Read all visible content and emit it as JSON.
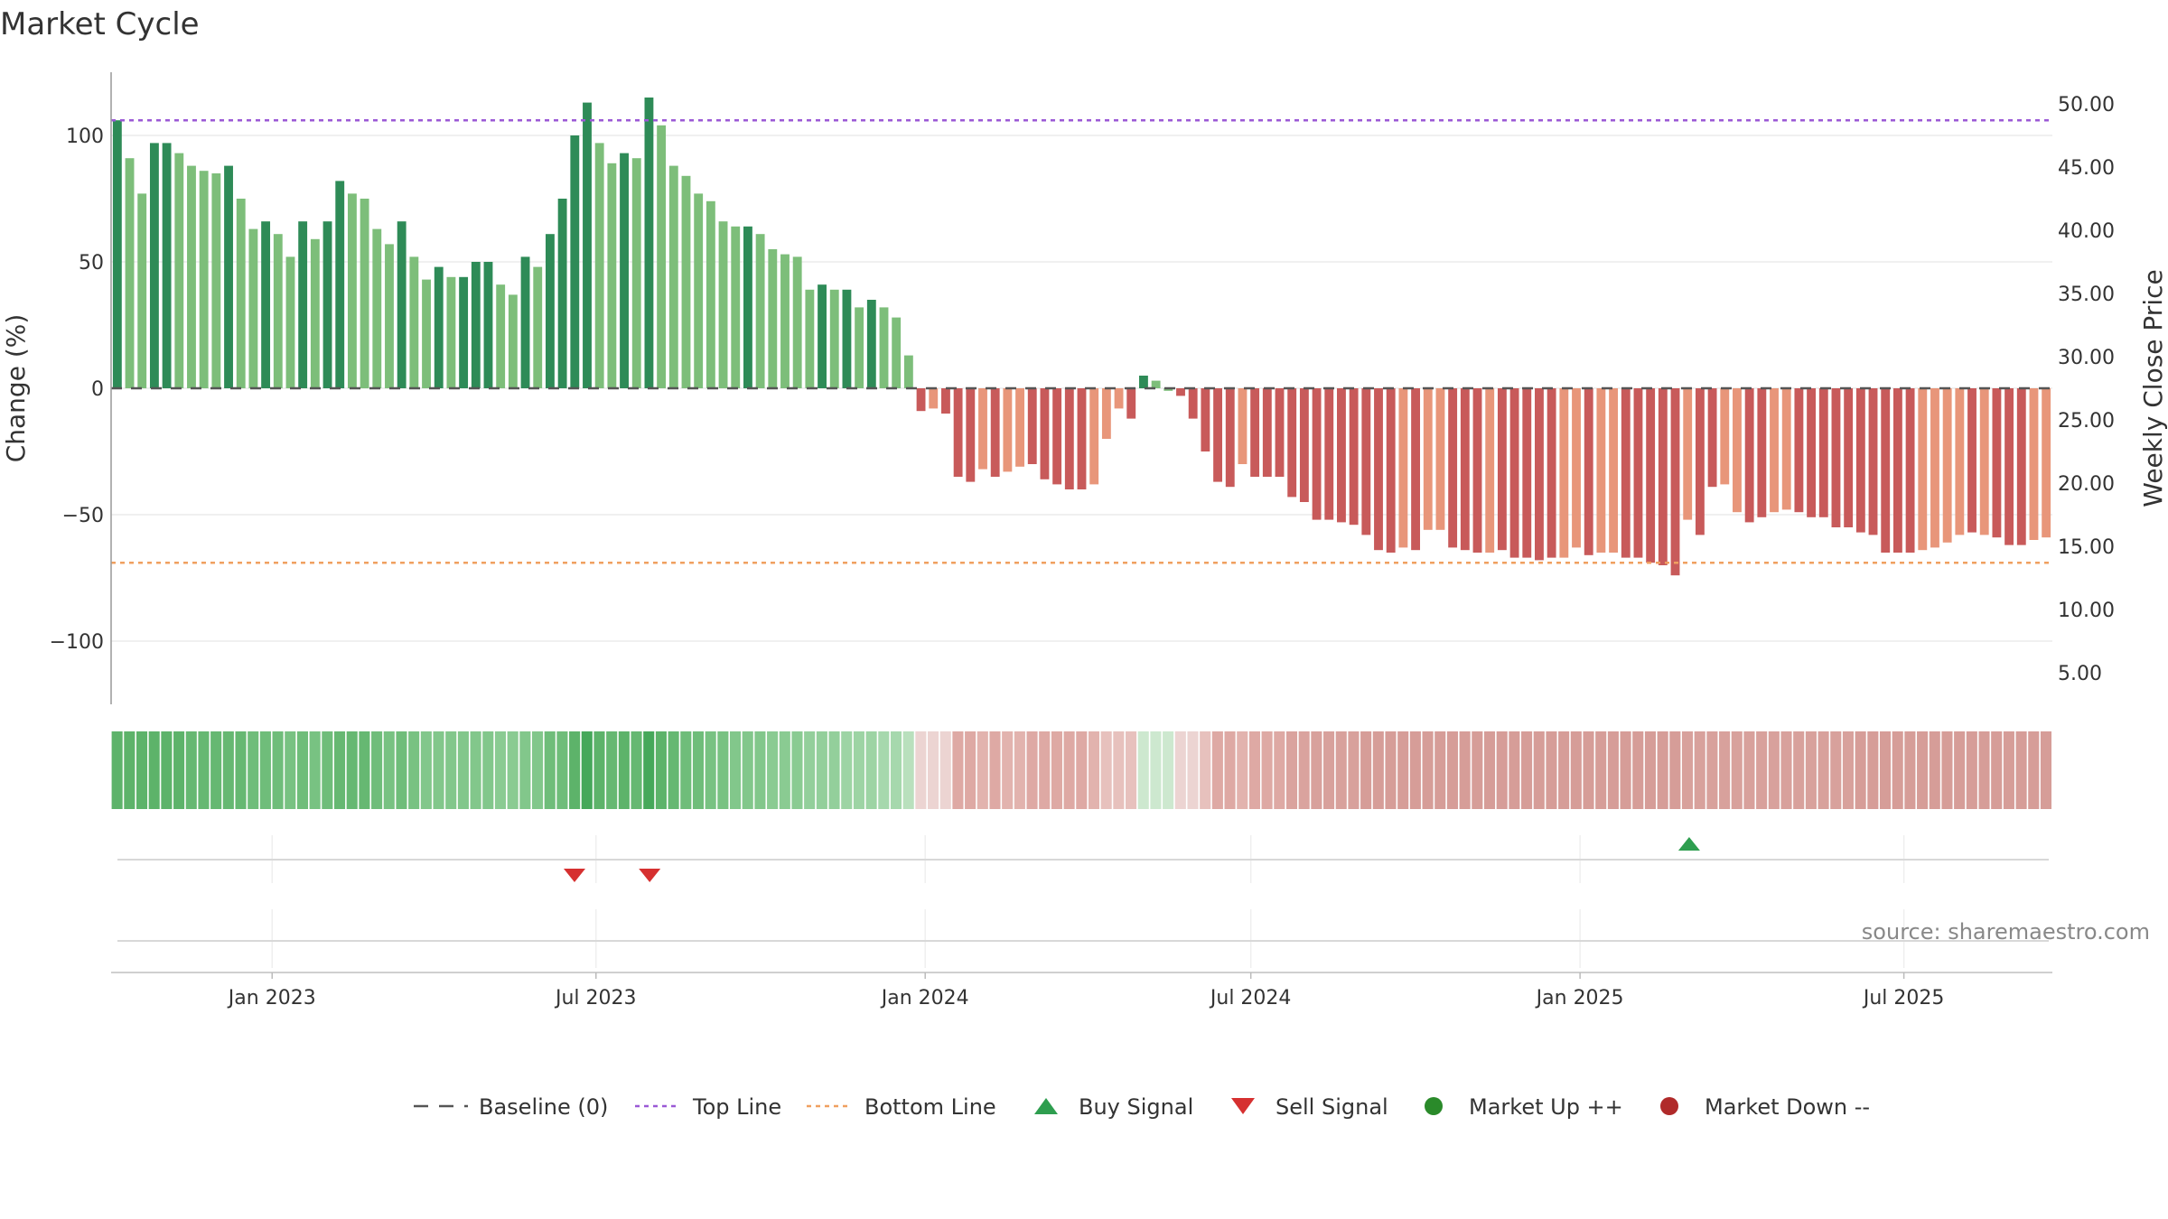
{
  "chart_data": {
    "type": "bar",
    "title": "Market Cycle",
    "ylabel_left": "Change (%)",
    "ylabel_right": "Weekly Close Price",
    "ylim_left": [
      -125,
      125
    ],
    "ylim_right": [
      2.5,
      52.5
    ],
    "left_ticks": [
      100,
      50,
      0,
      -50,
      -100
    ],
    "left_tick_labels": [
      "100",
      "50",
      "0",
      "−50",
      "−100"
    ],
    "right_ticks": [
      50,
      45,
      40,
      35,
      30,
      25,
      20,
      15,
      10,
      5
    ],
    "right_tick_labels": [
      "50.00",
      "45.00",
      "40.00",
      "35.00",
      "30.00",
      "25.00",
      "20.00",
      "15.00",
      "10.00",
      "5.00"
    ],
    "x_start": "2022-10-03",
    "x_end": "2025-09-22",
    "x_ticks": [
      "2023-01-01",
      "2023-07-01",
      "2024-01-01",
      "2024-07-01",
      "2025-01-01",
      "2025-07-01"
    ],
    "x_tick_labels": [
      "Jan 2023",
      "Jul 2023",
      "Jan 2024",
      "Jul 2024",
      "Jan 2025",
      "Jul 2025"
    ],
    "top_line": 106,
    "bottom_line": -69,
    "baseline": 0,
    "series": [
      {
        "values": [
          106,
          91,
          77,
          97,
          97,
          93,
          88,
          86,
          85,
          88,
          75,
          63,
          66,
          61,
          52,
          66,
          59,
          66,
          82,
          77,
          75,
          63,
          57,
          66,
          52,
          43,
          48,
          44,
          44,
          50,
          50,
          41,
          37,
          52,
          48,
          61,
          75,
          100,
          113,
          97,
          89,
          93,
          91,
          115,
          104,
          88,
          84,
          77,
          74,
          66,
          64,
          64,
          61,
          55,
          53,
          52,
          39,
          41,
          39,
          39,
          32,
          35,
          32,
          28,
          13,
          -9,
          -8,
          -10,
          -35,
          -37,
          -32,
          -35,
          -33,
          -31,
          -30,
          -36,
          -38,
          -40,
          -40,
          -38,
          -20,
          -8,
          -12,
          5,
          3,
          -1,
          -3,
          -12,
          -25,
          -37,
          -39,
          -30,
          -35,
          -35,
          -35,
          -43,
          -45,
          -52,
          -52,
          -53,
          -54,
          -58,
          -64,
          -65,
          -63,
          -64,
          -56,
          -56,
          -63,
          -64,
          -65,
          -65,
          -64,
          -67,
          -67,
          -68,
          -67,
          -67,
          -63,
          -66,
          -65,
          -65,
          -67,
          -67,
          -69,
          -70,
          -74,
          -52,
          -58,
          -39,
          -38,
          -49,
          -53,
          -51,
          -49,
          -48,
          -49,
          -51,
          -51,
          -55,
          -55,
          -57,
          -58,
          -65,
          -65,
          -65,
          -64,
          -63,
          -61,
          -58,
          -57,
          -58,
          -59,
          -62,
          -62,
          -60,
          -59
        ],
        "colors": [
          "#2e8b57",
          "#7dbe7a",
          "#7dbe7a",
          "#2e8b57",
          "#2e8b57",
          "#7dbe7a",
          "#7dbe7a",
          "#7dbe7a",
          "#7dbe7a",
          "#2e8b57",
          "#7dbe7a",
          "#7dbe7a",
          "#2e8b57",
          "#7dbe7a",
          "#7dbe7a",
          "#2e8b57",
          "#7dbe7a",
          "#2e8b57",
          "#2e8b57",
          "#7dbe7a",
          "#7dbe7a",
          "#7dbe7a",
          "#7dbe7a",
          "#2e8b57",
          "#7dbe7a",
          "#7dbe7a",
          "#2e8b57",
          "#7dbe7a",
          "#2e8b57",
          "#2e8b57",
          "#2e8b57",
          "#7dbe7a",
          "#7dbe7a",
          "#2e8b57",
          "#7dbe7a",
          "#2e8b57",
          "#2e8b57",
          "#2e8b57",
          "#2e8b57",
          "#7dbe7a",
          "#7dbe7a",
          "#2e8b57",
          "#7dbe7a",
          "#2e8b57",
          "#7dbe7a",
          "#7dbe7a",
          "#7dbe7a",
          "#7dbe7a",
          "#7dbe7a",
          "#7dbe7a",
          "#7dbe7a",
          "#2e8b57",
          "#7dbe7a",
          "#7dbe7a",
          "#7dbe7a",
          "#7dbe7a",
          "#7dbe7a",
          "#2e8b57",
          "#7dbe7a",
          "#2e8b57",
          "#7dbe7a",
          "#2e8b57",
          "#7dbe7a",
          "#7dbe7a",
          "#7dbe7a",
          "#c85a5a",
          "#e8967a",
          "#c85a5a",
          "#c85a5a",
          "#c85a5a",
          "#e8967a",
          "#c85a5a",
          "#e8967a",
          "#e8967a",
          "#c85a5a",
          "#c85a5a",
          "#c85a5a",
          "#c85a5a",
          "#c85a5a",
          "#e8967a",
          "#e8967a",
          "#e8967a",
          "#c85a5a",
          "#2e8b57",
          "#7dbe7a",
          "#7dbe7a",
          "#c85a5a",
          "#c85a5a",
          "#c85a5a",
          "#c85a5a",
          "#c85a5a",
          "#e8967a",
          "#c85a5a",
          "#c85a5a",
          "#c85a5a",
          "#c85a5a",
          "#c85a5a",
          "#c85a5a",
          "#c85a5a",
          "#c85a5a",
          "#c85a5a",
          "#c85a5a",
          "#c85a5a",
          "#c85a5a",
          "#e8967a",
          "#c85a5a",
          "#e8967a",
          "#e8967a",
          "#c85a5a",
          "#c85a5a",
          "#c85a5a",
          "#e8967a",
          "#c85a5a",
          "#c85a5a",
          "#c85a5a",
          "#c85a5a",
          "#c85a5a",
          "#e8967a",
          "#e8967a",
          "#c85a5a",
          "#e8967a",
          "#e8967a",
          "#c85a5a",
          "#c85a5a",
          "#c85a5a",
          "#c85a5a",
          "#c85a5a",
          "#e8967a",
          "#c85a5a",
          "#c85a5a",
          "#e8967a",
          "#e8967a",
          "#c85a5a",
          "#c85a5a",
          "#e8967a",
          "#e8967a",
          "#c85a5a",
          "#c85a5a",
          "#c85a5a",
          "#c85a5a",
          "#c85a5a",
          "#c85a5a",
          "#c85a5a",
          "#c85a5a",
          "#c85a5a",
          "#c85a5a",
          "#e8967a",
          "#e8967a",
          "#e8967a",
          "#e8967a",
          "#c85a5a",
          "#e8967a",
          "#c85a5a",
          "#c85a5a",
          "#c85a5a",
          "#e8967a",
          "#e8967a"
        ]
      }
    ],
    "strip_colors": [
      "#5db36a",
      "#5db36a",
      "#5db36a",
      "#5db36a",
      "#5db36a",
      "#5db36a",
      "#66b872",
      "#66b872",
      "#66b872",
      "#66b872",
      "#66b872",
      "#6fbd7a",
      "#6fbd7a",
      "#6fbd7a",
      "#78c282",
      "#6fbd7a",
      "#78c282",
      "#6fbd7a",
      "#66b872",
      "#66b872",
      "#66b872",
      "#6fbd7a",
      "#78c282",
      "#6fbd7a",
      "#78c282",
      "#82c78b",
      "#82c78b",
      "#82c78b",
      "#82c78b",
      "#82c78b",
      "#82c78b",
      "#8acb92",
      "#8acb92",
      "#82c78b",
      "#82c78b",
      "#6fbd7a",
      "#6fbd7a",
      "#5db36a",
      "#46a85a",
      "#5db36a",
      "#66b872",
      "#5db36a",
      "#66b872",
      "#46a85a",
      "#5db36a",
      "#66b872",
      "#6fbd7a",
      "#6fbd7a",
      "#78c282",
      "#78c282",
      "#82c78b",
      "#82c78b",
      "#82c78b",
      "#8acb92",
      "#8acb92",
      "#8acb92",
      "#93cf9b",
      "#93cf9b",
      "#93cf9b",
      "#9dd4a4",
      "#9dd4a4",
      "#9dd4a4",
      "#a6d8ad",
      "#a6d8ad",
      "#b9e0bd",
      "#ecd4d2",
      "#ecd4d2",
      "#ecd4d2",
      "#dea9a4",
      "#dea9a4",
      "#e2b3ae",
      "#dea9a4",
      "#e2b3ae",
      "#e2b3ae",
      "#dea9a4",
      "#dea9a4",
      "#dea9a4",
      "#dea9a4",
      "#dea9a4",
      "#e2b3ae",
      "#e7c1bd",
      "#e7c1bd",
      "#e7c1bd",
      "#cde8cf",
      "#cde8cf",
      "#cde8cf",
      "#ecd4d2",
      "#ecd4d2",
      "#e7c1bd",
      "#dea9a4",
      "#dea9a4",
      "#e2b3ae",
      "#dea9a4",
      "#dea9a4",
      "#dea9a4",
      "#daa39e",
      "#daa39e",
      "#d8a19c",
      "#d8a19c",
      "#d8a19c",
      "#d8a19c",
      "#d69d98",
      "#d69d98",
      "#d69d98",
      "#d69d98",
      "#d69d98",
      "#d69d98",
      "#d69d98",
      "#d69d98",
      "#d69d98",
      "#d69d98",
      "#d69d98",
      "#d69d98",
      "#d69d98",
      "#d69d98",
      "#d69d98",
      "#d69d98",
      "#d69d98",
      "#d69d98",
      "#d69d98",
      "#d69d98",
      "#d69d98",
      "#d69d98",
      "#d69d98",
      "#d69d98",
      "#d69d98",
      "#d69d98",
      "#d8a19c",
      "#d8a19c",
      "#d8a19c",
      "#d8a19c",
      "#d8a19c",
      "#d8a19c",
      "#d8a19c",
      "#d8a19c",
      "#d8a19c",
      "#d8a19c",
      "#d8a19c",
      "#d8a19c",
      "#d8a19c",
      "#d8a19c",
      "#d69d98",
      "#d69d98",
      "#d69d98",
      "#d69d98",
      "#d69d98",
      "#d69d98",
      "#d69d98",
      "#d69d98",
      "#d69d98",
      "#d69d98",
      "#d69d98",
      "#d69d98",
      "#d69d98",
      "#d69d98",
      "#d69d98",
      "#d69d98"
    ],
    "buy_signals": [
      "2025-03-03"
    ],
    "sell_signals": [
      "2023-06-19",
      "2023-07-31"
    ],
    "legend": [
      {
        "label": "Baseline (0)",
        "symbol": "dash",
        "color": "#555555"
      },
      {
        "label": "Top Line",
        "symbol": "dotted",
        "color": "#9b59d6"
      },
      {
        "label": "Bottom Line",
        "symbol": "dotted",
        "color": "#f0a060"
      },
      {
        "label": "Buy Signal",
        "symbol": "triangle-up",
        "color": "#2e9e4f"
      },
      {
        "label": "Sell Signal",
        "symbol": "triangle-down",
        "color": "#d63030"
      },
      {
        "label": "Market Up ++",
        "symbol": "circle",
        "color": "#2a8a2a"
      },
      {
        "label": "Market Down --",
        "symbol": "circle",
        "color": "#b02a2a"
      }
    ],
    "legend_placement": "bottom-center",
    "grid": true,
    "colors": {
      "top_line": "#9b59d6",
      "bottom_line": "#f0a060",
      "baseline": "#555555",
      "buy": "#2e9e4f",
      "sell": "#d63030"
    }
  },
  "source": "source: sharemaestro.com"
}
